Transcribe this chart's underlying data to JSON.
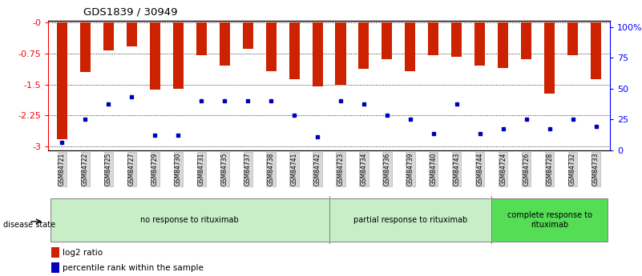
{
  "title": "GDS1839 / 30949",
  "samples": [
    "GSM84721",
    "GSM84722",
    "GSM84725",
    "GSM84727",
    "GSM84729",
    "GSM84730",
    "GSM84731",
    "GSM84735",
    "GSM84737",
    "GSM84738",
    "GSM84741",
    "GSM84742",
    "GSM84723",
    "GSM84734",
    "GSM84736",
    "GSM84739",
    "GSM84740",
    "GSM84743",
    "GSM84744",
    "GSM84724",
    "GSM84726",
    "GSM84728",
    "GSM84732",
    "GSM84733"
  ],
  "log2_values": [
    -2.82,
    -1.2,
    -0.68,
    -0.58,
    -1.62,
    -1.6,
    -0.78,
    -1.05,
    -0.64,
    -1.18,
    -1.38,
    -1.55,
    -1.5,
    -1.12,
    -0.88,
    -1.18,
    -0.78,
    -0.82,
    -1.05,
    -1.1,
    -0.88,
    -1.72,
    -0.78,
    -1.38
  ],
  "percentile_values": [
    3,
    22,
    34,
    40,
    9,
    9,
    37,
    37,
    37,
    37,
    25,
    8,
    37,
    34,
    25,
    22,
    10,
    34,
    10,
    14,
    22,
    14,
    22,
    16
  ],
  "groups": [
    {
      "label": "no response to rituximab",
      "start": 0,
      "end": 12,
      "color": "#c8eec8"
    },
    {
      "label": "partial response to rituximab",
      "start": 12,
      "end": 19,
      "color": "#c8eec8"
    },
    {
      "label": "complete response to\nrituximab",
      "start": 19,
      "end": 24,
      "color": "#55dd55"
    }
  ],
  "bar_color": "#cc2200",
  "dot_color": "#0000bb",
  "ylim_left": [
    -3.1,
    0.05
  ],
  "ylim_right": [
    0,
    105
  ],
  "yticks_left": [
    0,
    -0.75,
    -1.5,
    -2.25,
    -3
  ],
  "yticks_right": [
    0,
    25,
    50,
    75,
    100
  ],
  "background_color": "#ffffff"
}
